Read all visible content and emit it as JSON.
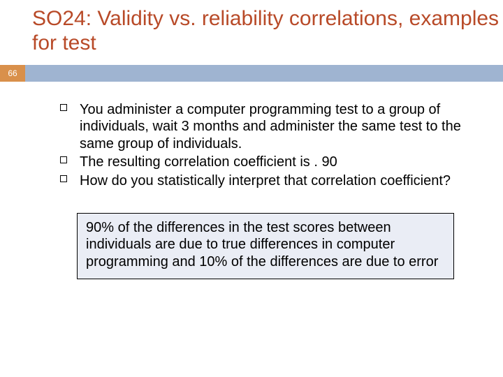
{
  "title_color": "#b84a28",
  "text_color": "#000000",
  "band_num_bg": "#d9904b",
  "band_num_color": "#ffffff",
  "band_bar_bg": "#9fb4d1",
  "box_bg": "#eaedf5",
  "box_border": "#000000",
  "slide_number": "66",
  "title": "SO24: Validity vs. reliability correlations, examples for test",
  "bullets": [
    "You administer a computer programming test to a group of individuals, wait 3 months and administer the same test to the same group of individuals.",
    "The resulting correlation coefficient is . 90",
    "How do you statistically interpret that correlation coefficient?"
  ],
  "answer": "90% of the differences in the test scores between individuals are due to true differences in computer programming and 10% of the differences are due to error"
}
